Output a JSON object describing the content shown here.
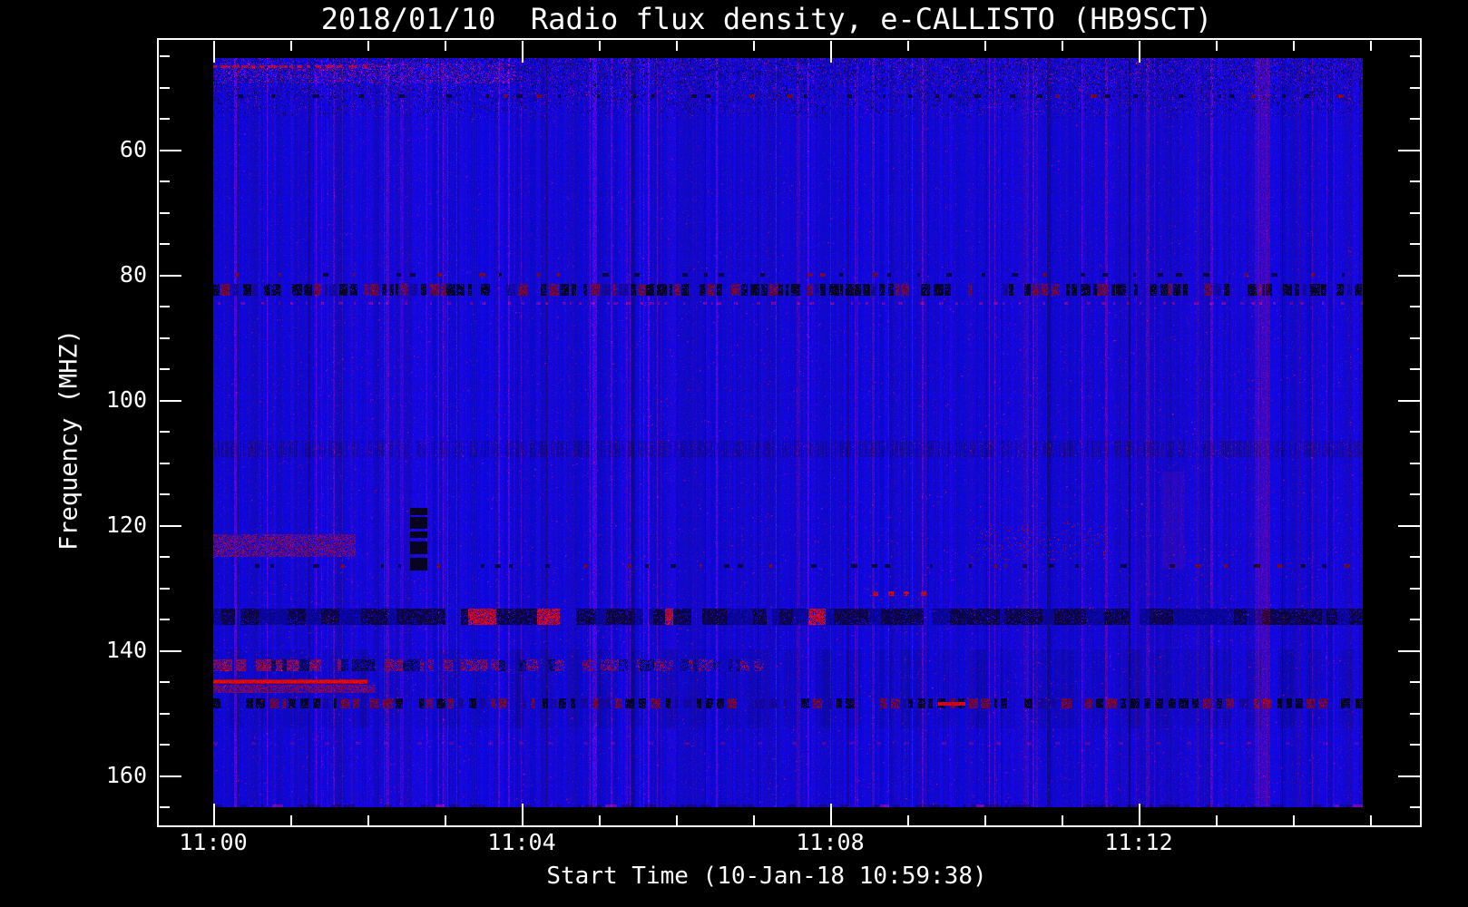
{
  "title": "2018/01/10  Radio flux density, e-CALLISTO (HB9SCT)",
  "station": "HB9SCT",
  "date": "2018/01/10",
  "axes": {
    "x": {
      "label": "Start Time (10-Jan-18 10:59:38)",
      "major_tick_labels": [
        "11:00",
        "11:04",
        "11:08",
        "11:12"
      ],
      "major_tick_minutes": [
        0,
        4,
        8,
        12
      ],
      "minor_tick_minutes": [
        1,
        2,
        3,
        5,
        6,
        7,
        9,
        10,
        11,
        13,
        14,
        15
      ],
      "duration_minutes": 14.9
    },
    "y": {
      "label": "Frequency (MHZ)",
      "major_tick_values": [
        60,
        80,
        100,
        120,
        140,
        160
      ],
      "minor_step_mhz": 5,
      "range_mhz": [
        45.4,
        165.1
      ],
      "inverted": true
    }
  },
  "colors": {
    "page_bg": "#000000",
    "axis": "#ffffff",
    "text": "#ffffff"
  },
  "chart_data": {
    "type": "heatmap",
    "subtype": "radio-spectrogram",
    "title": "2018/01/10  Radio flux density, e-CALLISTO (HB9SCT)",
    "xlabel": "Start Time (10-Jan-18 10:59:38)",
    "ylabel": "Frequency (MHZ)",
    "x_tick_labels": [
      "11:00",
      "11:04",
      "11:08",
      "11:12"
    ],
    "y_tick_values": [
      60,
      80,
      100,
      120,
      140,
      160
    ],
    "y_axis_inverted": true,
    "x_range_minutes": [
      0,
      14.9
    ],
    "y_range_mhz": [
      45.4,
      165.1
    ],
    "start_time": "10-Jan-18 10:59:38",
    "legend": "none",
    "grid": false,
    "palette": {
      "quiet_background_blue": "#2421e8",
      "darker_blue": "#1512c4",
      "rfi_black": "#05051e",
      "rfi_navy": "#020a46",
      "rfi_maroon": "#701048",
      "burst_bright_red": "#e51408",
      "speckle_red": "#9c1430"
    },
    "features": [
      {
        "kind": "top_noise_band",
        "f0_mhz": 45.4,
        "f1_mhz": 55.0,
        "desc": "dense dark/red speckle texture along top rows"
      },
      {
        "kind": "red_texture",
        "f0_mhz": 46.2,
        "f1_mhz": 49.5,
        "t0_min": 0,
        "t1_min": 3.9,
        "desc": "reddish mottling top left"
      },
      {
        "kind": "dashed_red_line",
        "f_mhz": 46.6,
        "t0_min": 0,
        "t1_min": 2.0,
        "desc": "dark-red dashed streak top left"
      },
      {
        "kind": "sparse_dark_dashes",
        "f_mhz": 51.3,
        "t0_min": 0,
        "t1_min": 14.9
      },
      {
        "kind": "sparse_dark_dashes",
        "f_mhz": 79.8,
        "t0_min": 0,
        "t1_min": 14.9
      },
      {
        "kind": "dashed_dark_line",
        "f_mhz": 82.3,
        "height_mhz": 1.7,
        "t0_min": 0,
        "t1_min": 14.9,
        "strength": "strong",
        "desc": "black/maroon RFI band full width"
      },
      {
        "kind": "speckle_row_red",
        "f_mhz": 84.3,
        "t0_min": 0,
        "t1_min": 14.9
      },
      {
        "kind": "mottled_band",
        "f0_mhz": 106.5,
        "f1_mhz": 109.2,
        "t0_min": 0,
        "t1_min": 14.9,
        "desc": "slightly darker mottled band"
      },
      {
        "kind": "red_patch",
        "f0_mhz": 121.4,
        "f1_mhz": 125.1,
        "t0_min": 0,
        "t1_min": 1.85,
        "desc": "maroon-red patch left side"
      },
      {
        "kind": "dark_blob_column",
        "f0_mhz": 117.2,
        "f1_mhz": 127.2,
        "t0_min": 2.55,
        "t1_min": 2.78,
        "desc": "black vertical blob at ~11:02.6"
      },
      {
        "kind": "sparse_dark_dashes",
        "f_mhz": 126.4,
        "t0_min": 0,
        "t1_min": 14.9
      },
      {
        "kind": "speckle_rect_red",
        "f0_mhz": 119.5,
        "f1_mhz": 125.5,
        "t0_min": 9.8,
        "t1_min": 11.6
      },
      {
        "kind": "red_dots",
        "f_mhz": 130.6,
        "t_positions_min": [
          8.55,
          8.75,
          8.95,
          9.18
        ]
      },
      {
        "kind": "dark_navy_band",
        "f0_mhz": 133.3,
        "f1_mhz": 136.0,
        "t0_min": 0,
        "t1_min": 14.9,
        "red_speckles": true,
        "desc": "dark navy dashed band full width"
      },
      {
        "kind": "stripe_region",
        "f0_mhz": 139.8,
        "f1_mhz": 152.5,
        "t0_min": 0,
        "t1_min": 14.9,
        "desc": "periodic vertical striping"
      },
      {
        "kind": "speckle_band_red",
        "f0_mhz": 141.4,
        "f1_mhz": 143.4,
        "t0_min": 0,
        "t1_min": 7.2
      },
      {
        "kind": "red_line",
        "f_mhz": 145.0,
        "t0_min": 0,
        "t1_min": 2.0,
        "desc": "bright solid red carrier line"
      },
      {
        "kind": "maroon_band",
        "f0_mhz": 145.5,
        "f1_mhz": 146.8,
        "t0_min": 0,
        "t1_min": 2.1
      },
      {
        "kind": "dashed_dark_line",
        "f_mhz": 148.4,
        "height_mhz": 1.4,
        "t0_min": 0,
        "t1_min": 14.9,
        "strength": "medium"
      },
      {
        "kind": "red_segment",
        "f_mhz": 148.4,
        "t0_min": 9.4,
        "t1_min": 9.75
      },
      {
        "kind": "faint_dot_row",
        "f_mhz": 154.6,
        "t0_min": 0,
        "t1_min": 14.9
      },
      {
        "kind": "red_vband",
        "t0_min": 13.5,
        "t1_min": 13.7,
        "f0_mhz": 45.4,
        "f1_mhz": 165.0,
        "strength": 1.0,
        "desc": "reddish vertical band near 11:13.5"
      },
      {
        "kind": "red_vband",
        "t0_min": 12.3,
        "t1_min": 12.6,
        "f0_mhz": 111.5,
        "f1_mhz": 127.0,
        "strength": 0.5
      },
      {
        "kind": "bottom_edge_dashes",
        "f_mhz": 164.6,
        "t0_min": 0,
        "t1_min": 14.9
      }
    ]
  }
}
